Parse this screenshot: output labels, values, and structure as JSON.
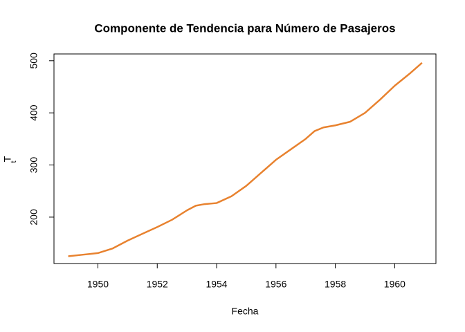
{
  "chart_data": {
    "type": "line",
    "title": "Componente de Tendencia para Número de Pasajeros",
    "xlabel": "Fecha",
    "ylabel": "T",
    "ylabel_subscript": "t",
    "x": [
      1949.0,
      1949.5,
      1950.0,
      1950.5,
      1951.0,
      1951.5,
      1952.0,
      1952.5,
      1953.0,
      1953.3,
      1953.6,
      1954.0,
      1954.5,
      1955.0,
      1955.5,
      1956.0,
      1956.5,
      1957.0,
      1957.3,
      1957.6,
      1958.0,
      1958.5,
      1959.0,
      1959.5,
      1960.0,
      1960.5,
      1960.92
    ],
    "series": [
      {
        "color": "#e8822f",
        "values": [
          125,
          128,
          131,
          140,
          155,
          168,
          181,
          195,
          213,
          222,
          225,
          227,
          240,
          260,
          285,
          310,
          330,
          350,
          365,
          372,
          376,
          383,
          400,
          425,
          452,
          475,
          496
        ]
      }
    ],
    "xlim": [
      1948.52,
      1961.39
    ],
    "ylim": [
      111,
      513
    ],
    "xticks": [
      1950,
      1952,
      1954,
      1956,
      1958,
      1960
    ],
    "yticks": [
      200,
      300,
      400,
      500
    ]
  }
}
